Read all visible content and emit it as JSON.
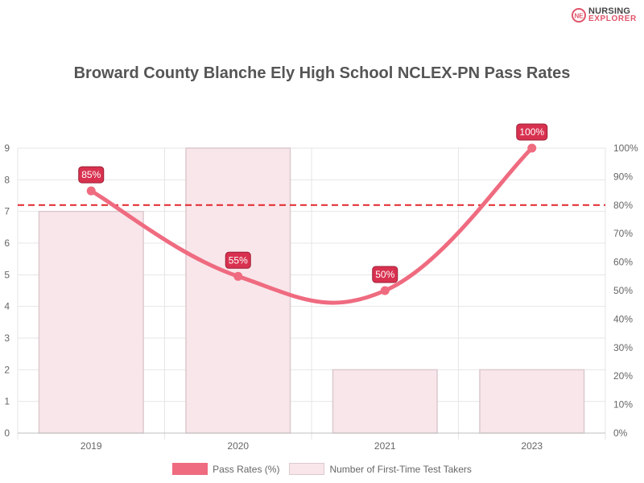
{
  "brand": {
    "line1": "NURSING",
    "line2": "EXPLORER",
    "mark": "NE"
  },
  "colors": {
    "line": "#ef6b80",
    "bar_fill": "#f9e6ea",
    "bar_border": "#dcc9cd",
    "label_bg": "#d8314f",
    "target_line": "#e0262b",
    "grid": "#e6e6e6",
    "axis_text": "#666666"
  },
  "chart_data": {
    "type": "bar",
    "title": "Broward County Blanche Ely High School NCLEX-PN Pass Rates",
    "categories": [
      "2019",
      "2020",
      "2021",
      "2023"
    ],
    "series": [
      {
        "name": "Number of First-Time Test Takers",
        "type": "bar",
        "axis": "left",
        "values": [
          7,
          9,
          2,
          2
        ]
      },
      {
        "name": "Pass Rates (%)",
        "type": "line",
        "axis": "right",
        "values": [
          85,
          55,
          50,
          100
        ],
        "labels": [
          "85%",
          "55%",
          "50%",
          "100%"
        ]
      }
    ],
    "reference_line": {
      "axis": "right",
      "value": 80,
      "style": "dashed"
    },
    "y_left": {
      "min": 0,
      "max": 9,
      "ticks": [
        "0",
        "1",
        "2",
        "3",
        "4",
        "5",
        "6",
        "7",
        "8",
        "9"
      ]
    },
    "y_right": {
      "min": 0,
      "max": 100,
      "ticks": [
        "0%",
        "10%",
        "20%",
        "30%",
        "40%",
        "50%",
        "60%",
        "70%",
        "80%",
        "90%",
        "100%"
      ]
    },
    "legend": [
      "Pass Rates (%)",
      "Number of First-Time Test Takers"
    ],
    "legend_position": "bottom"
  }
}
